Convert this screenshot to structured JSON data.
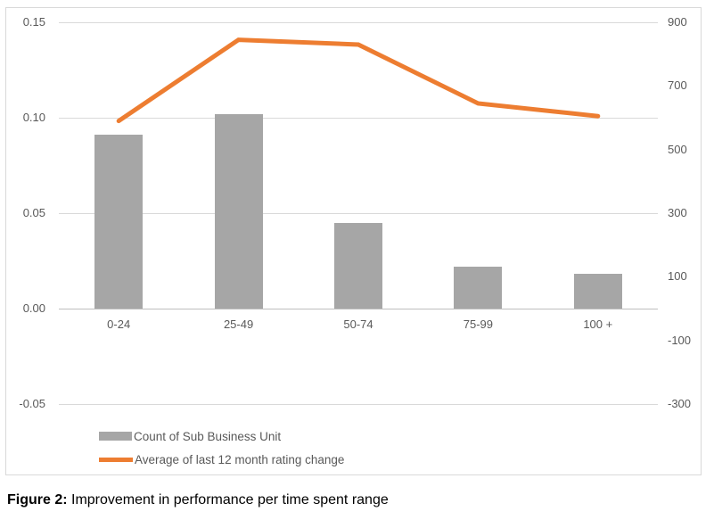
{
  "chart_data": {
    "type": "combo",
    "categories": [
      "0-24",
      "25-49",
      "50-74",
      "75-99",
      "100 +"
    ],
    "series": [
      {
        "name": "Count of Sub Business Unit",
        "type": "bar",
        "axis": "left",
        "values": [
          0.091,
          0.102,
          0.045,
          0.022,
          0.018
        ]
      },
      {
        "name": "Average of last 12 month rating change",
        "type": "line",
        "axis": "right",
        "values": [
          590,
          845,
          830,
          645,
          605
        ]
      }
    ],
    "left_axis": {
      "ticks": [
        "0.15",
        "0.10",
        "0.05",
        "0.00",
        "-0.05"
      ],
      "max": 0.15,
      "min": -0.05
    },
    "right_axis": {
      "ticks": [
        "900",
        "700",
        "500",
        "300",
        "100",
        "-100",
        "-300"
      ],
      "max": 900,
      "min": -300
    },
    "grid": true,
    "legend_position": "bottom-left",
    "title": ""
  },
  "legend": {
    "items": [
      {
        "label": "Count of Sub Business Unit",
        "swatch": "bar"
      },
      {
        "label": "Average of last 12 month rating change",
        "swatch": "line"
      }
    ]
  },
  "caption": {
    "label": "Figure 2:",
    "text": " Improvement in performance per time spent range"
  },
  "colors": {
    "bar": "#a6a6a6",
    "line": "#ed7d31",
    "grid": "#d9d9d9",
    "zero_axis": "#bfbfbf",
    "tick_text": "#595959",
    "border": "#d9d9d9",
    "caption_text": "#000000"
  }
}
